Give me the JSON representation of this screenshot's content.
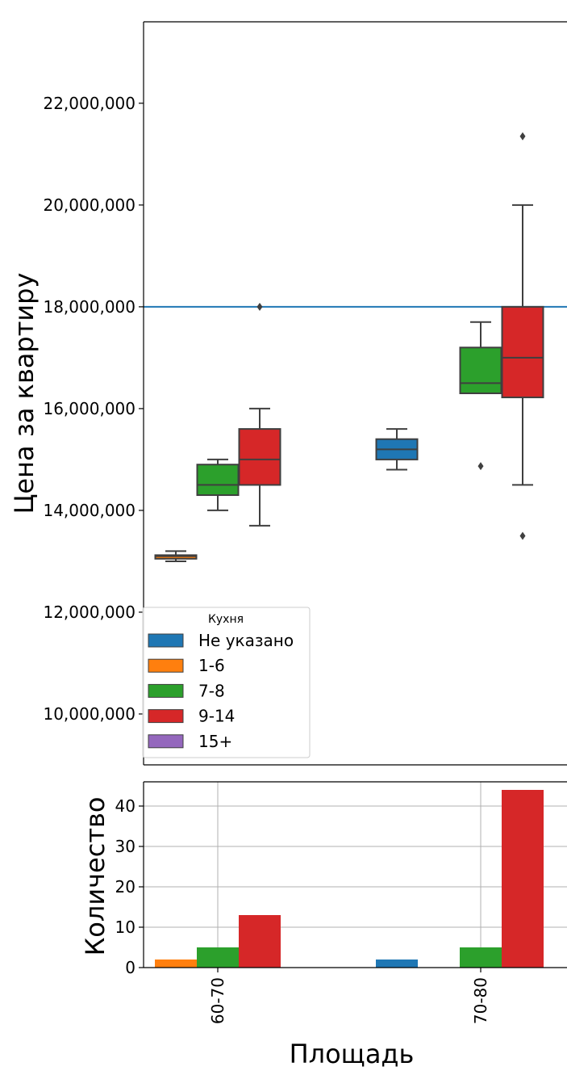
{
  "chart_data": [
    {
      "type": "box",
      "ylabel": "Цена за квартиру",
      "ylim": [
        9000000,
        23600000
      ],
      "yticks": [
        10000000,
        12000000,
        14000000,
        16000000,
        18000000,
        20000000,
        22000000
      ],
      "ytick_labels": [
        "10,000,000",
        "12,000,000",
        "14,000,000",
        "16,000,000",
        "18,000,000",
        "20,000,000",
        "22,000,000"
      ],
      "categories": [
        "60-70",
        "70-80"
      ],
      "reference_line": 18000000,
      "reference_line_color": "#1f77b4",
      "legend": {
        "title": "Кухня",
        "placement": "lower-left",
        "entries": [
          {
            "label": "Не указано",
            "color": "#1f77b4"
          },
          {
            "label": "1-6",
            "color": "#ff7f0e"
          },
          {
            "label": "7-8",
            "color": "#2ca02c"
          },
          {
            "label": "9-14",
            "color": "#d62728"
          },
          {
            "label": "15+",
            "color": "#9467bd"
          }
        ]
      },
      "boxes": [
        {
          "category": "60-70",
          "group": "1-6",
          "whislo": 13000000,
          "q1": 13050000,
          "med": 13100000,
          "q3": 13120000,
          "whishi": 13200000,
          "fliers": []
        },
        {
          "category": "60-70",
          "group": "7-8",
          "whislo": 14000000,
          "q1": 14300000,
          "med": 14500000,
          "q3": 14900000,
          "whishi": 15000000,
          "fliers": []
        },
        {
          "category": "60-70",
          "group": "9-14",
          "whislo": 13700000,
          "q1": 14500000,
          "med": 15000000,
          "q3": 15600000,
          "whishi": 16000000,
          "fliers": [
            18000000
          ]
        },
        {
          "category": "70-80",
          "group": "Не указано",
          "whislo": 14800000,
          "q1": 15000000,
          "med": 15200000,
          "q3": 15400000,
          "whishi": 15600000,
          "fliers": []
        },
        {
          "category": "70-80",
          "group": "7-8",
          "whislo": 16300000,
          "q1": 16300000,
          "med": 16500000,
          "q3": 17200000,
          "whishi": 17700000,
          "fliers": [
            14870000
          ]
        },
        {
          "category": "70-80",
          "group": "9-14",
          "whislo": 14500000,
          "q1": 16220000,
          "med": 17000000,
          "q3": 18000000,
          "whishi": 20000000,
          "fliers": [
            21350000,
            13500000
          ]
        }
      ]
    },
    {
      "type": "bar",
      "xlabel": "Площадь",
      "ylabel": "Количество",
      "categories": [
        "60-70",
        "70-80"
      ],
      "ylim": [
        0,
        46
      ],
      "yticks": [
        0,
        10,
        20,
        30,
        40
      ],
      "grid": true,
      "series": [
        {
          "name": "Не указано",
          "color": "#1f77b4",
          "values": [
            0,
            2
          ]
        },
        {
          "name": "1-6",
          "color": "#ff7f0e",
          "values": [
            2,
            0
          ]
        },
        {
          "name": "7-8",
          "color": "#2ca02c",
          "values": [
            5,
            5
          ]
        },
        {
          "name": "9-14",
          "color": "#d62728",
          "values": [
            13,
            44
          ]
        },
        {
          "name": "15+",
          "color": "#9467bd",
          "values": [
            0,
            0
          ]
        }
      ]
    }
  ]
}
